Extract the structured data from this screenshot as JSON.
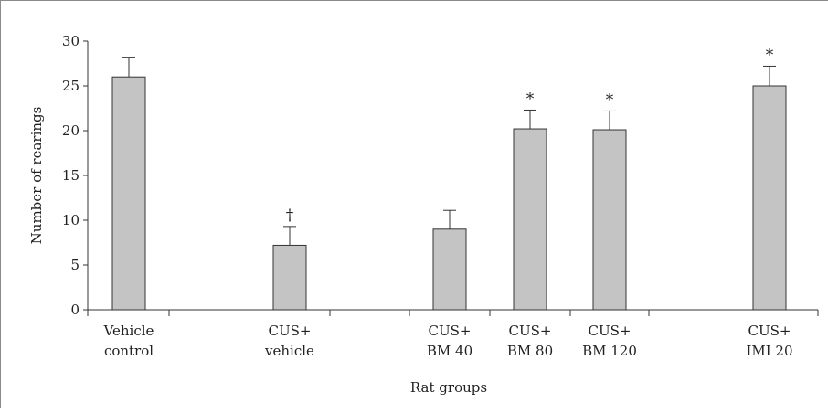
{
  "chart_data": {
    "type": "bar",
    "xlabel": "Rat groups",
    "ylabel": "Number of rearings",
    "ylim": [
      0,
      30
    ],
    "yticks": [
      "0",
      "5",
      "10",
      "15",
      "20",
      "25",
      "30"
    ],
    "categories": [
      [
        "Vehicle",
        "control"
      ],
      [
        "CUS+",
        "vehicle"
      ],
      [
        "CUS+",
        "BM 40"
      ],
      [
        "CUS+",
        "BM 80"
      ],
      [
        "CUS+",
        "BM 120"
      ],
      [
        "CUS+",
        "IMI 20"
      ]
    ],
    "values": [
      26.0,
      7.2,
      9.0,
      20.2,
      20.1,
      25.0
    ],
    "errors": [
      2.2,
      2.1,
      2.1,
      2.1,
      2.1,
      2.2
    ],
    "markers": [
      "",
      "†",
      "",
      "*",
      "*",
      "*"
    ],
    "bar_color": "#c4c4c4",
    "grid": false
  }
}
